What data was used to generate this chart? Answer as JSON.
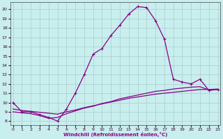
{
  "xlabel": "Windchill (Refroidissement éolien,°C)",
  "bg_color": "#c8eeee",
  "line_color": "#880088",
  "grid_color": "#aacccc",
  "x_major": [
    0,
    1,
    2,
    3,
    4,
    5,
    6,
    7,
    8,
    9,
    10,
    11,
    12,
    13,
    14,
    15,
    16,
    17,
    18,
    19,
    20,
    21,
    22,
    23
  ],
  "y_major": [
    8,
    9,
    10,
    11,
    12,
    13,
    14,
    15,
    16,
    17,
    18,
    19,
    20
  ],
  "xlim": [
    -0.3,
    23.3
  ],
  "ylim": [
    7.6,
    20.8
  ],
  "curve1_x": [
    0,
    1,
    2,
    3,
    4,
    5,
    6,
    7,
    8,
    9,
    10,
    11,
    12,
    13,
    14,
    15,
    16,
    17,
    18,
    19,
    20,
    21,
    22,
    23
  ],
  "curve1_y": [
    10.0,
    9.0,
    9.0,
    8.7,
    8.4,
    8.0,
    9.3,
    11.0,
    13.0,
    15.2,
    15.8,
    17.2,
    18.3,
    19.5,
    20.3,
    20.2,
    18.8,
    16.8,
    12.5,
    12.2,
    12.0,
    12.5,
    11.3,
    11.4
  ],
  "curve1_markers": [
    0,
    1,
    2,
    3,
    4,
    5,
    6,
    7,
    8,
    9,
    10,
    11,
    12,
    13,
    14,
    15,
    16,
    17,
    18,
    19,
    20,
    21,
    22,
    23
  ],
  "curve2_x": [
    0,
    1,
    2,
    3,
    4,
    5,
    6,
    7,
    8,
    9,
    10,
    11,
    12,
    13,
    14,
    15,
    16,
    17,
    18,
    19,
    20,
    21,
    22,
    23
  ],
  "curve2_y": [
    9.0,
    8.9,
    8.8,
    8.6,
    8.3,
    8.4,
    8.8,
    9.1,
    9.4,
    9.6,
    9.9,
    10.1,
    10.4,
    10.6,
    10.8,
    11.0,
    11.2,
    11.3,
    11.45,
    11.55,
    11.65,
    11.7,
    11.35,
    11.4
  ],
  "curve3_x": [
    0,
    1,
    2,
    3,
    4,
    5,
    6,
    7,
    8,
    9,
    10,
    11,
    12,
    13,
    14,
    15,
    16,
    17,
    18,
    19,
    20,
    21,
    22,
    23
  ],
  "curve3_y": [
    9.3,
    9.15,
    9.05,
    8.95,
    8.85,
    8.75,
    9.0,
    9.2,
    9.45,
    9.65,
    9.85,
    10.05,
    10.25,
    10.45,
    10.6,
    10.75,
    10.9,
    11.0,
    11.1,
    11.2,
    11.3,
    11.4,
    11.4,
    11.45
  ]
}
